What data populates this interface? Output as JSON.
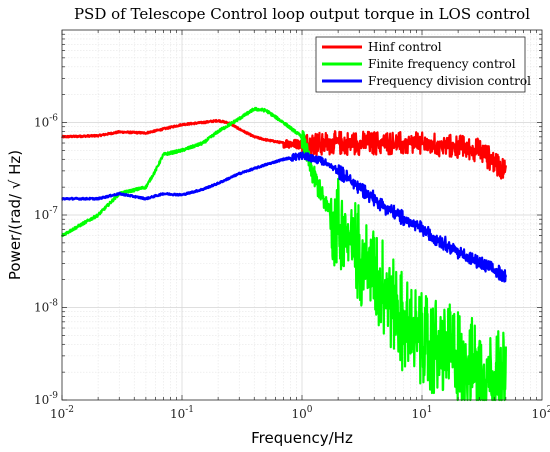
{
  "chart_data": {
    "type": "line",
    "title": "PSD of Telescope Control loop output torque in LOS control",
    "xlabel": "Frequency/Hz",
    "ylabel": "Power/(rad/ √ Hz)",
    "xscale": "log",
    "yscale": "log",
    "xlim": [
      0.01,
      100
    ],
    "ylim": [
      1e-09,
      1e-05
    ],
    "grid": true,
    "legend_position": "top-right",
    "x_tick_labels": [
      {
        "value": 0.01,
        "base": "10",
        "exp": "-2"
      },
      {
        "value": 0.1,
        "base": "10",
        "exp": "-1"
      },
      {
        "value": 1,
        "base": "10",
        "exp": "0"
      },
      {
        "value": 10,
        "base": "10",
        "exp": "1"
      },
      {
        "value": 100,
        "base": "10",
        "exp": "2"
      }
    ],
    "y_tick_labels": [
      {
        "value": 1e-09,
        "base": "10",
        "exp": "-9"
      },
      {
        "value": 1e-08,
        "base": "10",
        "exp": "-8"
      },
      {
        "value": 1e-07,
        "base": "10",
        "exp": "-7"
      },
      {
        "value": 1e-06,
        "base": "10",
        "exp": "-6"
      }
    ],
    "series": [
      {
        "name": "Hinf control",
        "color": "#ff0000",
        "noise": "medium",
        "x": [
          0.01,
          0.02,
          0.03,
          0.05,
          0.07,
          0.1,
          0.15,
          0.2,
          0.25,
          0.3,
          0.4,
          0.5,
          0.7,
          1.0,
          2,
          5,
          10,
          20,
          30,
          50
        ],
        "y": [
          7e-07,
          7.2e-07,
          7.9e-07,
          7.7e-07,
          8.5e-07,
          9.5e-07,
          1e-06,
          1.05e-06,
          9.8e-07,
          8.5e-07,
          7e-07,
          6.5e-07,
          6e-07,
          5.8e-07,
          6e-07,
          6e-07,
          5.8e-07,
          5.5e-07,
          5e-07,
          3e-07
        ]
      },
      {
        "name": "Finite frequency control",
        "color": "#00ff00",
        "noise": "high",
        "x": [
          0.01,
          0.02,
          0.03,
          0.05,
          0.06,
          0.07,
          0.1,
          0.15,
          0.2,
          0.3,
          0.4,
          0.5,
          0.7,
          1.0,
          1.2,
          1.5,
          2,
          3,
          5,
          7,
          10,
          20,
          30,
          50
        ],
        "y": [
          6e-08,
          1e-07,
          1.7e-07,
          2e-07,
          3e-07,
          4.5e-07,
          5e-07,
          6e-07,
          8e-07,
          1.1e-06,
          1.4e-06,
          1.35e-06,
          1e-06,
          7e-07,
          3e-07,
          1.5e-07,
          8e-08,
          4e-08,
          1.5e-08,
          7e-09,
          4e-09,
          3e-09,
          2e-09,
          1.5e-09
        ]
      },
      {
        "name": "Frequency division control",
        "color": "#0000ff",
        "noise": "low",
        "x": [
          0.01,
          0.02,
          0.03,
          0.05,
          0.07,
          0.1,
          0.15,
          0.2,
          0.3,
          0.5,
          0.7,
          1.0,
          1.5,
          2,
          3,
          5,
          10,
          20,
          30,
          50
        ],
        "y": [
          1.5e-07,
          1.5e-07,
          1.7e-07,
          1.5e-07,
          1.7e-07,
          1.65e-07,
          1.9e-07,
          2.2e-07,
          2.8e-07,
          3.5e-07,
          4e-07,
          4.4e-07,
          3.8e-07,
          3e-07,
          2e-07,
          1.2e-07,
          7e-08,
          4e-08,
          3e-08,
          2.2e-08
        ]
      }
    ]
  }
}
